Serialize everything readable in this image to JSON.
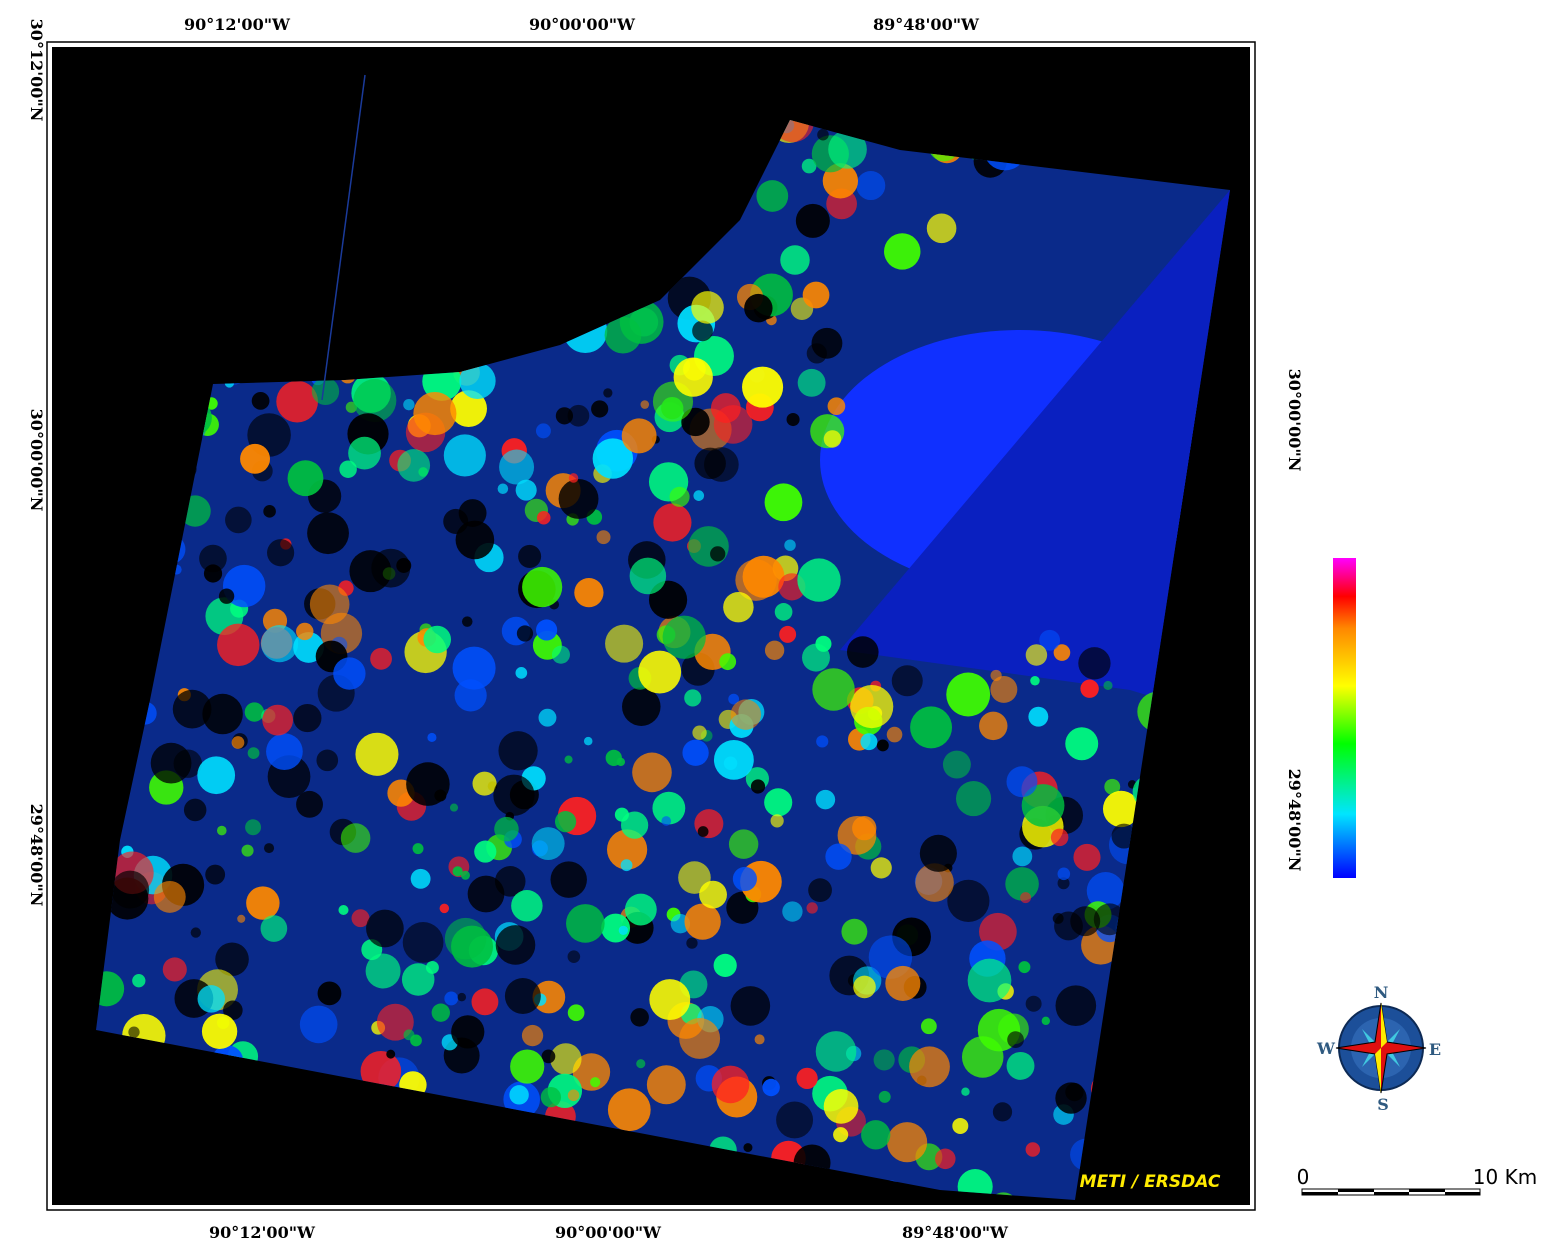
{
  "map": {
    "top_labels": [
      "90°12'00\"W",
      "90°00'00\"W",
      "89°48'00\"W"
    ],
    "bottom_labels": [
      "90°12'00\"W",
      "90°00'00\"W",
      "89°48'00\"W"
    ],
    "left_labels": [
      "30°12'00\"N",
      "30°00'00\"N",
      "29°48'00\"N"
    ],
    "right_labels": [
      "30°00'00\"N",
      "29°48'00\"N"
    ],
    "credit": "METI / ERSDAC",
    "compass": {
      "n": "N",
      "e": "E",
      "s": "S",
      "w": "W"
    },
    "scale": {
      "start": "0",
      "end": "10 Km"
    }
  }
}
